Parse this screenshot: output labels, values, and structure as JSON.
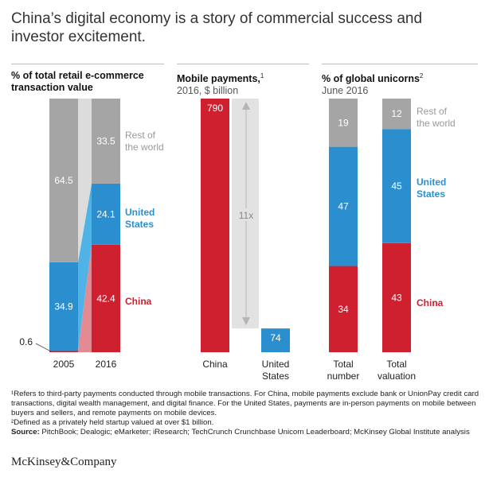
{
  "title": "China’s digital economy is a story of commercial success and investor excitement.",
  "colors": {
    "china": "#cf202f",
    "us": "#2b8fcf",
    "rest": "#a5a5a5",
    "us_light": "#4fb3e8",
    "china_light": "#e48a93",
    "rest_light": "#dcdcdc",
    "arrow_bg": "#e2e2e2",
    "text_red": "#cf202f",
    "text_blue": "#2b8fcf",
    "text_gray": "#999999"
  },
  "headers": {
    "panel1": {
      "line1": "% of total retail e-commerce",
      "line2": "transaction value"
    },
    "panel2": {
      "line1": "Mobile payments,",
      "sup": "1",
      "line2": "2016, $ billion"
    },
    "panel3": {
      "line1": "% of global unicorns",
      "sup": "2",
      "line2": "June 2016"
    }
  },
  "chart_data": [
    {
      "type": "bar",
      "stacked": true,
      "title": "% of total retail e-commerce transaction value",
      "categories": [
        "2005",
        "2016"
      ],
      "series": [
        {
          "name": "China",
          "values": [
            0.6,
            42.4
          ]
        },
        {
          "name": "United States",
          "values": [
            34.9,
            24.1
          ]
        },
        {
          "name": "Rest of the world",
          "values": [
            64.5,
            33.5
          ]
        }
      ],
      "labels": {
        "china": [
          {
            "category": "2005",
            "text": "0.6"
          },
          {
            "category": "2016",
            "text": "42.4"
          }
        ],
        "us": [
          {
            "category": "2005",
            "text": "34.9"
          },
          {
            "category": "2016",
            "text": "24.1"
          }
        ],
        "rest": [
          {
            "category": "2005",
            "text": "64.5"
          },
          {
            "category": "2016",
            "text": "33.5"
          }
        ]
      },
      "legend": [
        "Rest of",
        "the world",
        "United",
        "States",
        "China"
      ],
      "ylim": [
        0,
        100
      ]
    },
    {
      "type": "bar",
      "title": "Mobile payments, 2016, $ billion",
      "categories": [
        "China",
        "United States"
      ],
      "category_lines": [
        [
          "China"
        ],
        [
          "United",
          "States"
        ]
      ],
      "values": [
        790,
        74
      ],
      "value_labels": [
        "790",
        "74"
      ],
      "annotation": "11x"
    },
    {
      "type": "bar",
      "stacked": true,
      "title": "% of global unicorns, June 2016",
      "categories": [
        "Total number",
        "Total valuation"
      ],
      "category_lines": [
        [
          "Total",
          "number"
        ],
        [
          "Total",
          "valuation"
        ]
      ],
      "series": [
        {
          "name": "China",
          "values": [
            34,
            43
          ]
        },
        {
          "name": "United States",
          "values": [
            47,
            45
          ]
        },
        {
          "name": "Rest of the world",
          "values": [
            19,
            12
          ]
        }
      ],
      "value_labels": {
        "china": [
          "34",
          "43"
        ],
        "us": [
          "47",
          "45"
        ],
        "rest": [
          "19",
          "12"
        ]
      },
      "legend": [
        "Rest of",
        "the world",
        "United",
        "States",
        "China"
      ],
      "ylim": [
        0,
        100
      ]
    }
  ],
  "footnotes": {
    "n1": "¹Refers to third-party payments conducted through mobile transactions. For China, mobile payments exclude bank or UnionPay credit card transactions, digital wealth management, and digital finance. For the United States, payments are in-person payments on mobile between buyers and sellers, and remote payments on mobile devices.",
    "n2": "²Defined as a privately held startup valued at over $1 billion.",
    "source_label": "Source:",
    "source_text": " PitchBook; Dealogic; eMarketer; iResearch; TechCrunch Crunchbase Unicorn Leaderboard; McKinsey Global Institute analysis"
  },
  "brand": "McKinsey&Company"
}
